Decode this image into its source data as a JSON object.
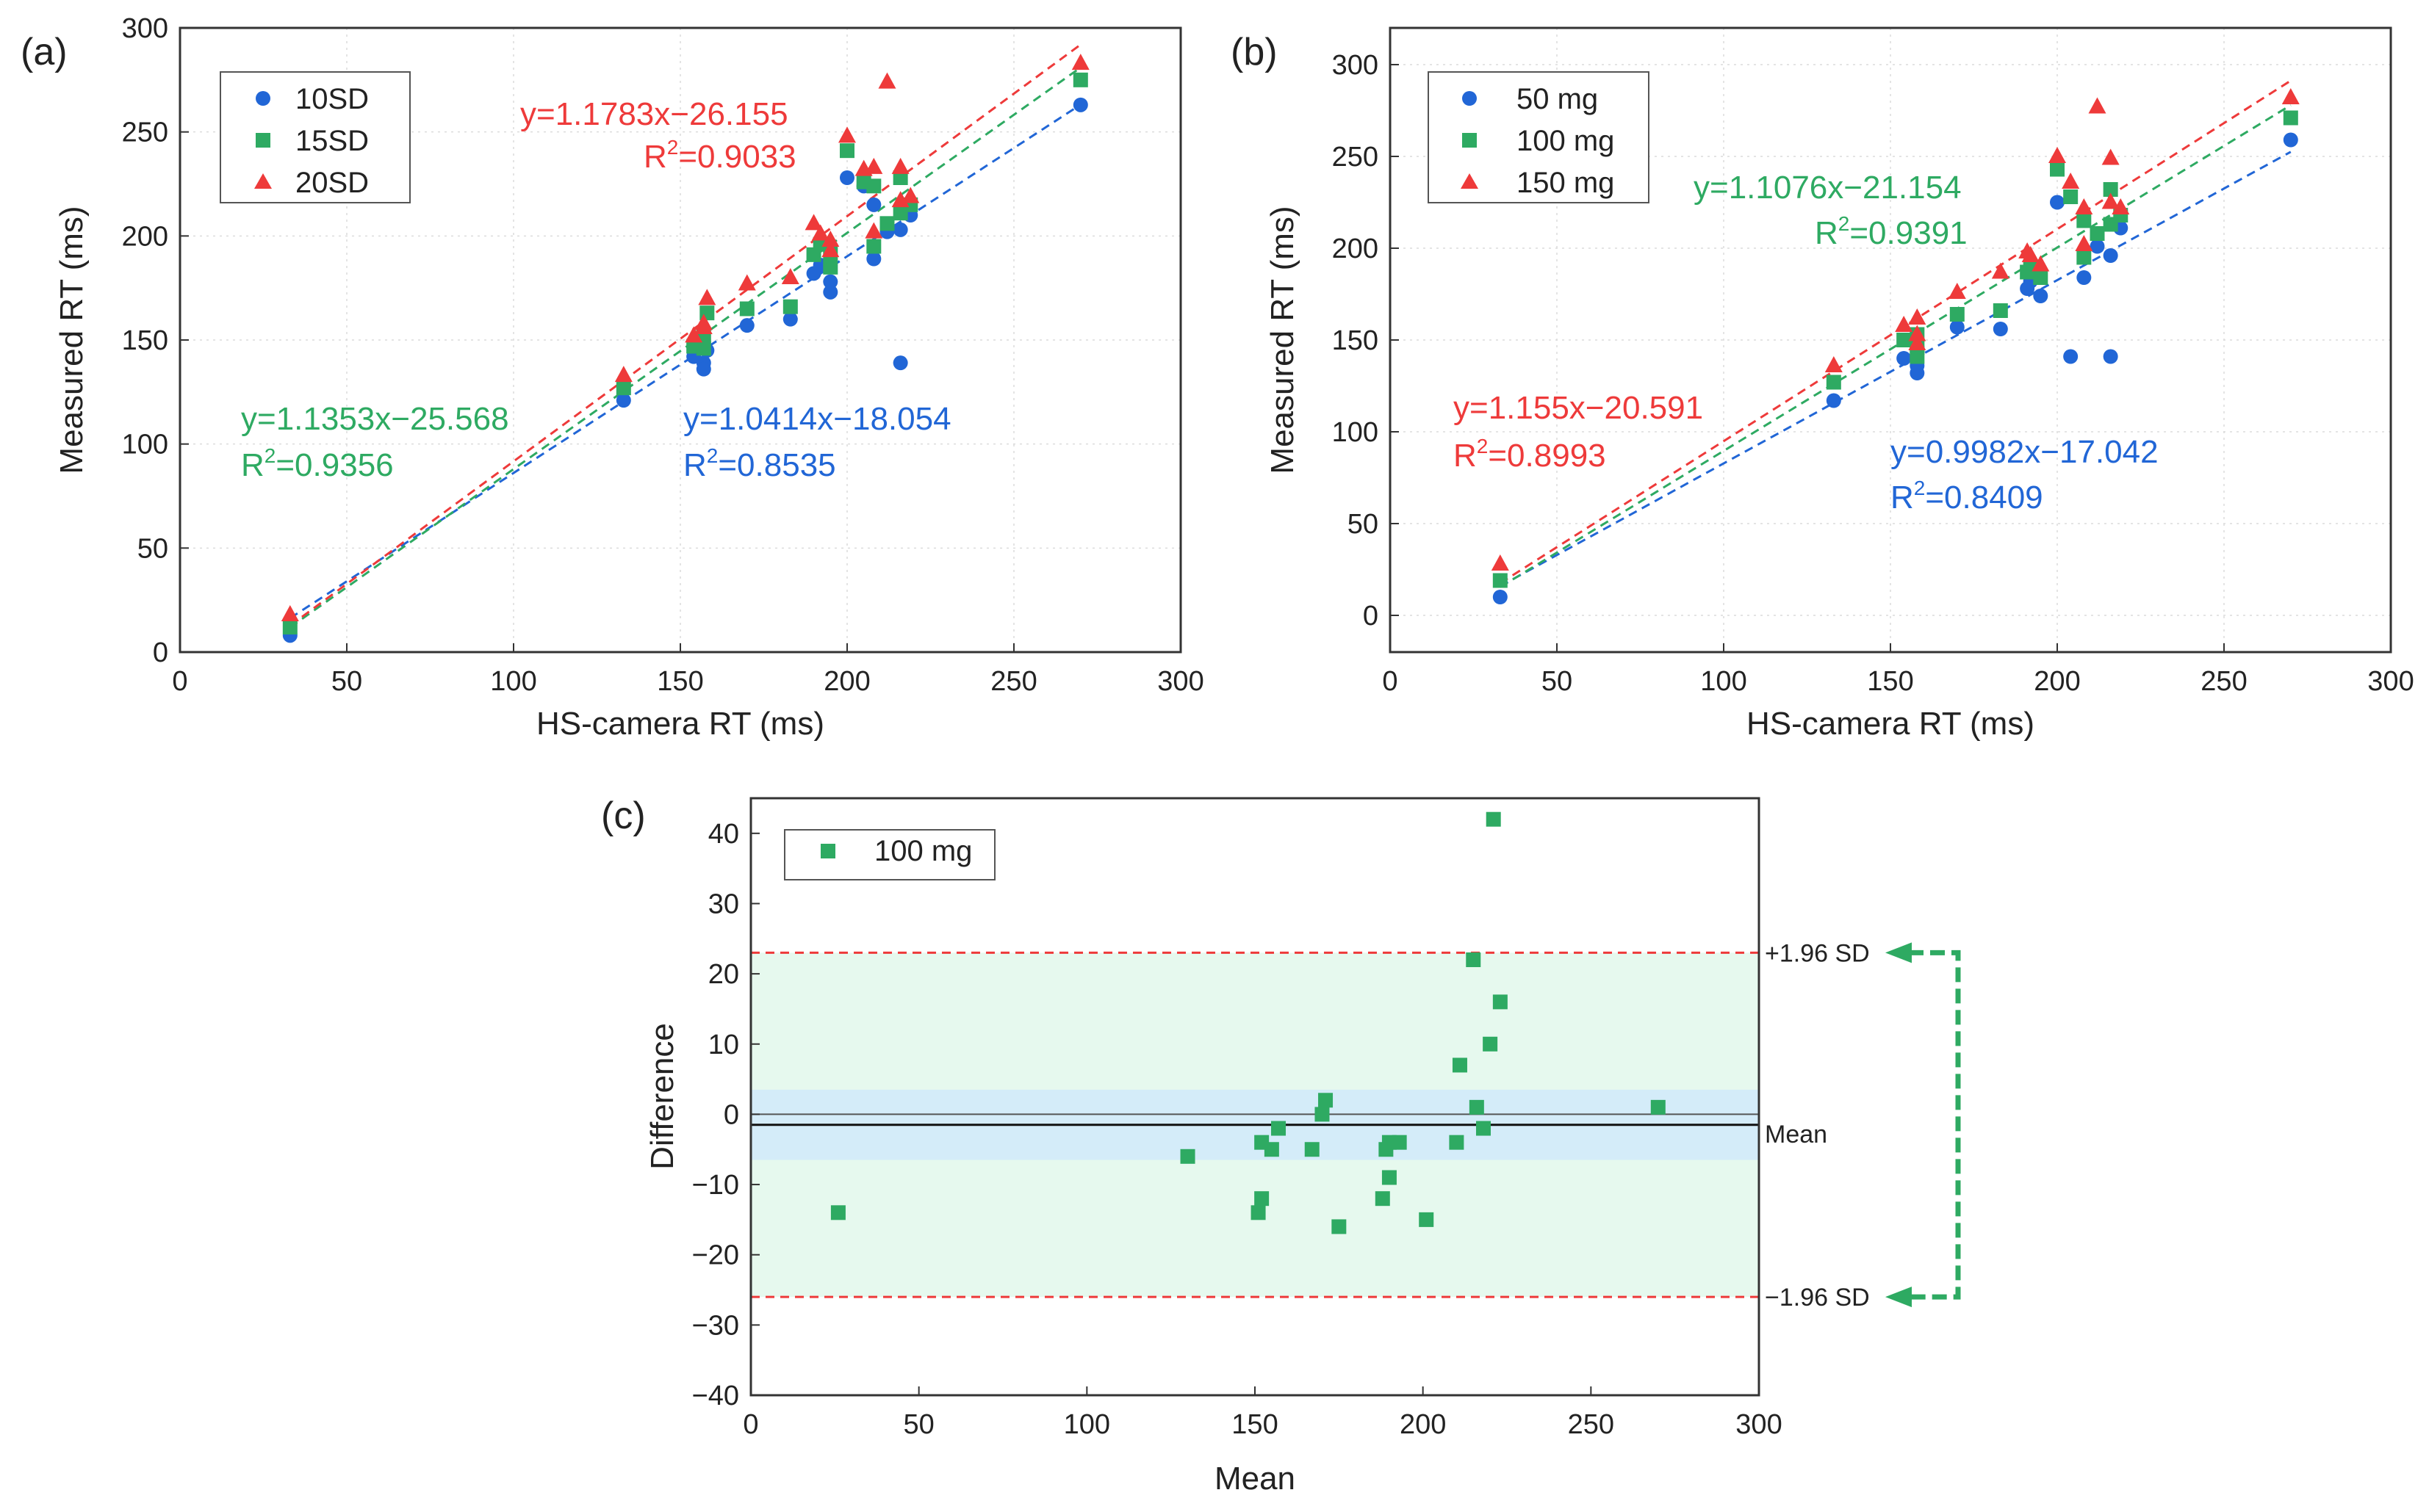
{
  "colors": {
    "blue": "#2166d6",
    "green": "#2eaa62",
    "red": "#ee3a3a",
    "band_outer": "#e6f9ee",
    "band_inner": "#d4ecf9"
  },
  "chart_data": [
    {
      "id": "a",
      "type": "scatter",
      "panel_label": "(a)",
      "xlabel": "HS-camera RT (ms)",
      "ylabel": "Measured RT (ms)",
      "xlim": [
        0,
        300
      ],
      "ylim": [
        0,
        300
      ],
      "xticks": [
        0,
        50,
        100,
        150,
        200,
        250,
        300
      ],
      "yticks": [
        0,
        50,
        100,
        150,
        200,
        250,
        300
      ],
      "grid": true,
      "legend_position": "top-left",
      "series": [
        {
          "name": "10SD",
          "marker": "circle",
          "color": "#2166d6",
          "x": [
            33,
            133,
            154,
            157,
            157,
            158,
            170,
            183,
            190,
            192,
            195,
            195,
            200,
            205,
            208,
            208,
            212,
            216,
            216,
            219
          ],
          "y": [
            8,
            121,
            142,
            139,
            136,
            145,
            157,
            160,
            182,
            186,
            173,
            178,
            228,
            224,
            189,
            215,
            202,
            139,
            203,
            210
          ],
          "fit": {
            "slope": 1.0414,
            "intercept": -18.054,
            "equation": "y=1.0414x−18.054",
            "r2_prefix": "R",
            "r2_sup": "2",
            "r2_value": "=0.8535"
          }
        },
        {
          "name": "15SD",
          "marker": "square",
          "color": "#2eaa62",
          "x": [
            33,
            133,
            154,
            157,
            157,
            158,
            170,
            183,
            190,
            192,
            195,
            195,
            200,
            205,
            208,
            208,
            212,
            216,
            216,
            219
          ],
          "y": [
            12,
            127,
            147,
            152,
            146,
            163,
            165,
            166,
            191,
            196,
            185,
            192,
            241,
            226,
            195,
            224,
            206,
            228,
            211,
            215
          ],
          "fit": {
            "slope": 1.1353,
            "intercept": -25.568,
            "equation": "y=1.1353x−25.568",
            "r2_prefix": "R",
            "r2_sup": "2",
            "r2_value": "=0.9356"
          }
        },
        {
          "name": "20SD",
          "marker": "triangle",
          "color": "#ee3a3a",
          "x": [
            33,
            133,
            154,
            157,
            157,
            158,
            170,
            183,
            190,
            192,
            195,
            195,
            200,
            205,
            208,
            208,
            212,
            216,
            216,
            219,
            270
          ],
          "y": [
            18,
            133,
            152,
            158,
            156,
            170,
            177,
            180,
            206,
            201,
            193,
            198,
            248,
            232,
            202,
            233,
            274,
            233,
            217,
            219,
            283
          ],
          "fit": {
            "slope": 1.1783,
            "intercept": -26.155,
            "equation": "y=1.1783x−26.155",
            "r2_prefix": "R",
            "r2_sup": "2",
            "r2_value": "=0.9033"
          }
        }
      ],
      "extra_points": [
        {
          "series": "10SD",
          "x": 270,
          "y": 263
        },
        {
          "series": "15SD",
          "x": 270,
          "y": 275
        }
      ]
    },
    {
      "id": "b",
      "type": "scatter",
      "panel_label": "(b)",
      "xlabel": "HS-camera RT (ms)",
      "ylabel": "Measured RT (ms)",
      "xlim": [
        0,
        300
      ],
      "ylim": [
        -20,
        320
      ],
      "xticks": [
        0,
        50,
        100,
        150,
        200,
        250,
        300
      ],
      "yticks": [
        0,
        50,
        100,
        150,
        200,
        250,
        300
      ],
      "grid": true,
      "legend_position": "top-left",
      "series": [
        {
          "name": "50 mg",
          "marker": "circle",
          "color": "#2166d6",
          "x": [
            33,
            133,
            154,
            158,
            158,
            158,
            170,
            183,
            191,
            192,
            195,
            200,
            204,
            208,
            212,
            216,
            216,
            219,
            270
          ],
          "y": [
            10,
            117,
            140,
            136,
            132,
            146,
            157,
            156,
            178,
            182,
            174,
            225,
            141,
            184,
            201,
            141,
            196,
            211,
            259
          ],
          "fit": {
            "slope": 0.9982,
            "intercept": -17.042,
            "equation": "y=0.9982x−17.042",
            "r2_prefix": "R",
            "r2_sup": "2",
            "r2_value": "=0.8409"
          }
        },
        {
          "name": "100 mg",
          "marker": "square",
          "color": "#2eaa62",
          "x": [
            33,
            133,
            154,
            158,
            158,
            158,
            170,
            183,
            191,
            192,
            195,
            200,
            204,
            208,
            208,
            212,
            216,
            216,
            219,
            270
          ],
          "y": [
            19,
            127,
            150,
            146,
            141,
            153,
            164,
            166,
            187,
            190,
            184,
            243,
            228,
            195,
            215,
            208,
            232,
            213,
            218,
            271
          ],
          "fit": {
            "slope": 1.1076,
            "intercept": -21.154,
            "equation": "y=1.1076x−21.154",
            "r2_prefix": "R",
            "r2_sup": "2",
            "r2_value": "=0.9391"
          }
        },
        {
          "name": "150 mg",
          "marker": "triangle",
          "color": "#ee3a3a",
          "x": [
            33,
            133,
            154,
            158,
            158,
            158,
            170,
            183,
            191,
            192,
            195,
            200,
            204,
            208,
            208,
            212,
            216,
            216,
            219,
            270
          ],
          "y": [
            28,
            136,
            158,
            153,
            148,
            162,
            176,
            187,
            198,
            196,
            191,
            250,
            236,
            202,
            222,
            277,
            249,
            225,
            222,
            282
          ],
          "fit": {
            "slope": 1.155,
            "intercept": -20.591,
            "equation": "y=1.155x−20.591",
            "r2_prefix": "R",
            "r2_sup": "2",
            "r2_value": "=0.8993"
          }
        }
      ]
    },
    {
      "id": "c",
      "type": "scatter",
      "panel_label": "(c)",
      "xlabel": "Mean",
      "ylabel": "Difference",
      "xlim": [
        0,
        300
      ],
      "ylim": [
        -40,
        45
      ],
      "xticks": [
        0,
        50,
        100,
        150,
        200,
        250,
        300
      ],
      "yticks": [
        -40,
        -30,
        -20,
        -10,
        0,
        10,
        20,
        30,
        40
      ],
      "grid": false,
      "legend_position": "top-left",
      "series": [
        {
          "name": "100 mg",
          "marker": "square",
          "color": "#2eaa62",
          "x": [
            26,
            130,
            151,
            152,
            152,
            155,
            157,
            167,
            170,
            171,
            175,
            188,
            189,
            190,
            190,
            193,
            201,
            210,
            211,
            215,
            216,
            218,
            220,
            221,
            223,
            270
          ],
          "y": [
            -14,
            -6,
            -14,
            -12,
            -4,
            -5,
            -2,
            -5,
            0,
            2,
            -16,
            -12,
            -5,
            -4,
            -9,
            -4,
            -15,
            -4,
            7,
            22,
            1,
            -2,
            10,
            42,
            16,
            1
          ]
        }
      ],
      "mean_line": -1.5,
      "upper_loa": 23,
      "lower_loa": -26,
      "mean_ci": [
        -6.5,
        3.5
      ],
      "labels": {
        "upper": "+1.96 SD",
        "mean": "Mean",
        "lower": "−1.96 SD"
      }
    }
  ]
}
